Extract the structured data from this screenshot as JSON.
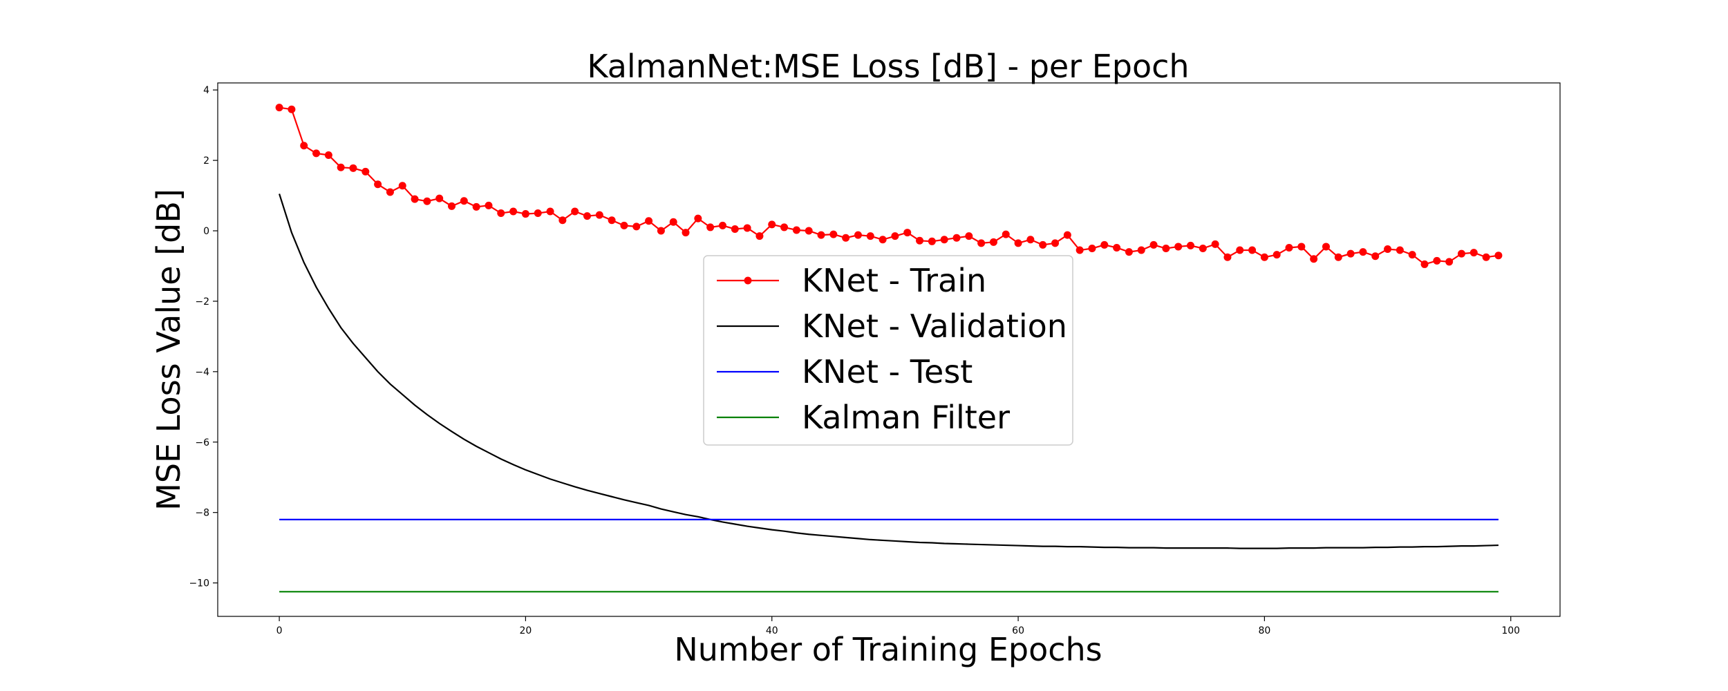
{
  "chart_data": {
    "type": "line",
    "title": "KalmanNet:MSE Loss [dB] - per Epoch",
    "xlabel": "Number of Training Epochs",
    "ylabel": "MSE Loss Value [dB]",
    "xlim": [
      -5,
      104
    ],
    "ylim": [
      -10.95,
      4.2
    ],
    "xticks": [
      0,
      20,
      40,
      60,
      80,
      100
    ],
    "yticks": [
      -10,
      -8,
      -6,
      -4,
      -2,
      0,
      2,
      4
    ],
    "grid": false,
    "legend_position": "center",
    "x": [
      0,
      1,
      2,
      3,
      4,
      5,
      6,
      7,
      8,
      9,
      10,
      11,
      12,
      13,
      14,
      15,
      16,
      17,
      18,
      19,
      20,
      21,
      22,
      23,
      24,
      25,
      26,
      27,
      28,
      29,
      30,
      31,
      32,
      33,
      34,
      35,
      36,
      37,
      38,
      39,
      40,
      41,
      42,
      43,
      44,
      45,
      46,
      47,
      48,
      49,
      50,
      51,
      52,
      53,
      54,
      55,
      56,
      57,
      58,
      59,
      60,
      61,
      62,
      63,
      64,
      65,
      66,
      67,
      68,
      69,
      70,
      71,
      72,
      73,
      74,
      75,
      76,
      77,
      78,
      79,
      80,
      81,
      82,
      83,
      84,
      85,
      86,
      87,
      88,
      89,
      90,
      91,
      92,
      93,
      94,
      95,
      96,
      97,
      98,
      99
    ],
    "series": [
      {
        "name": "KNet - Train",
        "color": "#ff0000",
        "marker": "circle",
        "values": [
          3.5,
          3.45,
          2.42,
          2.2,
          2.15,
          1.8,
          1.78,
          1.68,
          1.32,
          1.1,
          1.28,
          0.9,
          0.84,
          0.92,
          0.7,
          0.85,
          0.68,
          0.72,
          0.5,
          0.55,
          0.48,
          0.5,
          0.55,
          0.3,
          0.55,
          0.42,
          0.45,
          0.3,
          0.15,
          0.12,
          0.28,
          0.0,
          0.25,
          -0.05,
          0.35,
          0.1,
          0.15,
          0.05,
          0.08,
          -0.15,
          0.18,
          0.1,
          0.02,
          0.0,
          -0.12,
          -0.1,
          -0.2,
          -0.12,
          -0.15,
          -0.25,
          -0.15,
          -0.05,
          -0.28,
          -0.3,
          -0.25,
          -0.2,
          -0.15,
          -0.35,
          -0.32,
          -0.1,
          -0.35,
          -0.25,
          -0.4,
          -0.35,
          -0.12,
          -0.55,
          -0.5,
          -0.4,
          -0.48,
          -0.6,
          -0.55,
          -0.4,
          -0.5,
          -0.45,
          -0.42,
          -0.5,
          -0.38,
          -0.75,
          -0.55,
          -0.55,
          -0.75,
          -0.68,
          -0.48,
          -0.45,
          -0.8,
          -0.45,
          -0.75,
          -0.65,
          -0.6,
          -0.72,
          -0.52,
          -0.55,
          -0.68,
          -0.95,
          -0.85,
          -0.88,
          -0.65,
          -0.62,
          -0.75,
          -0.7
        ]
      },
      {
        "name": "KNet - Validation",
        "color": "#000000",
        "marker": "none",
        "values": [
          1.05,
          -0.05,
          -0.9,
          -1.6,
          -2.2,
          -2.75,
          -3.2,
          -3.6,
          -4.0,
          -4.35,
          -4.65,
          -4.95,
          -5.22,
          -5.47,
          -5.7,
          -5.92,
          -6.12,
          -6.3,
          -6.48,
          -6.64,
          -6.79,
          -6.92,
          -7.05,
          -7.16,
          -7.27,
          -7.37,
          -7.46,
          -7.55,
          -7.64,
          -7.72,
          -7.8,
          -7.9,
          -7.98,
          -8.06,
          -8.12,
          -8.2,
          -8.27,
          -8.33,
          -8.39,
          -8.44,
          -8.49,
          -8.53,
          -8.58,
          -8.62,
          -8.65,
          -8.68,
          -8.71,
          -8.74,
          -8.77,
          -8.79,
          -8.81,
          -8.83,
          -8.85,
          -8.86,
          -8.88,
          -8.89,
          -8.9,
          -8.91,
          -8.92,
          -8.93,
          -8.94,
          -8.95,
          -8.96,
          -8.96,
          -8.97,
          -8.97,
          -8.98,
          -8.99,
          -8.99,
          -9.0,
          -9.0,
          -9.0,
          -9.01,
          -9.01,
          -9.01,
          -9.01,
          -9.01,
          -9.01,
          -9.02,
          -9.02,
          -9.02,
          -9.02,
          -9.01,
          -9.01,
          -9.01,
          -9.0,
          -9.0,
          -9.0,
          -9.0,
          -8.99,
          -8.99,
          -8.98,
          -8.98,
          -8.97,
          -8.97,
          -8.96,
          -8.95,
          -8.95,
          -8.94,
          -8.93
        ]
      },
      {
        "name": "KNet - Test",
        "color": "#0000ff",
        "marker": "none",
        "constant": -8.2
      },
      {
        "name": "Kalman Filter",
        "color": "#008000",
        "marker": "none",
        "constant": -10.25
      }
    ]
  }
}
